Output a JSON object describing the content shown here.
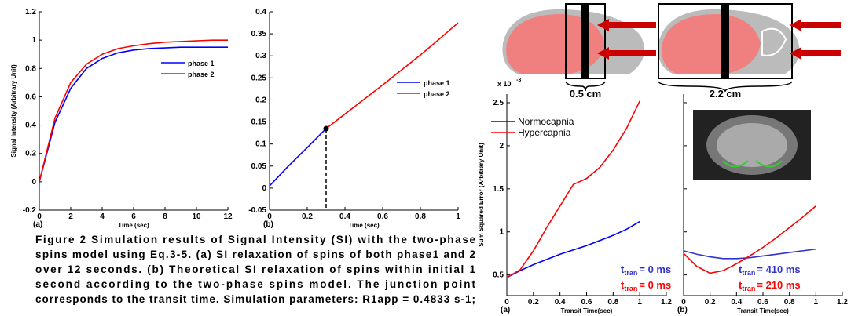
{
  "chart_data": [
    {
      "type": "line",
      "panel": "(a)",
      "x_label": "Time (sec)",
      "y_label": "Signal Intensity (Arbitrary Unit)",
      "x": [
        0,
        1,
        2,
        3,
        4,
        5,
        6,
        7,
        8,
        9,
        10,
        11,
        12
      ],
      "series": [
        {
          "name": "phase 1",
          "color": "#0000ff",
          "values": [
            0,
            0.42,
            0.66,
            0.8,
            0.87,
            0.91,
            0.93,
            0.94,
            0.945,
            0.95,
            0.95,
            0.95,
            0.95
          ]
        },
        {
          "name": "phase 2",
          "color": "#ff0000",
          "values": [
            0,
            0.45,
            0.7,
            0.83,
            0.9,
            0.94,
            0.96,
            0.975,
            0.985,
            0.99,
            0.995,
            1.0,
            1.0
          ]
        }
      ],
      "xlim": [
        0,
        12
      ],
      "xticks": [
        0,
        2,
        4,
        6,
        8,
        10,
        12
      ],
      "ylim": [
        -0.2,
        1.2
      ],
      "yticks": [
        -0.2,
        0,
        0.2,
        0.4,
        0.6,
        0.8,
        1,
        1.2
      ],
      "legend": "center right"
    },
    {
      "type": "line",
      "panel": "(b)",
      "x_label": "Time (sec)",
      "x": [
        0,
        0.1,
        0.2,
        0.3,
        0.4,
        0.5,
        0.6,
        0.7,
        0.8,
        0.9,
        1.0
      ],
      "series": [
        {
          "name": "phase 1",
          "color": "#0000ff",
          "values": [
            0.005,
            0.05,
            0.092,
            0.135,
            null,
            null,
            null,
            null,
            null,
            null,
            null
          ]
        },
        {
          "name": "phase 2",
          "color": "#ff0000",
          "values": [
            null,
            null,
            null,
            0.135,
            0.168,
            0.201,
            0.234,
            0.268,
            0.302,
            0.338,
            0.375
          ]
        }
      ],
      "junction": {
        "x": 0.3,
        "y": 0.135
      },
      "xlim": [
        0,
        1
      ],
      "xticks": [
        0,
        0.2,
        0.4,
        0.6,
        0.8,
        1
      ],
      "ylim": [
        -0.05,
        0.4
      ],
      "yticks": [
        -0.05,
        0,
        0.05,
        0.1,
        0.15,
        0.2,
        0.25,
        0.3,
        0.35,
        0.4
      ],
      "legend": "center right"
    },
    {
      "type": "line",
      "panel": "(a)",
      "x_label": "Transit Time(sec)",
      "y_label": "Sum Squared Error (Arbitrary Unit)",
      "y_multiplier": "x 10",
      "y_multiplier_exp": "-3",
      "x": [
        0,
        0.1,
        0.2,
        0.3,
        0.4,
        0.5,
        0.6,
        0.7,
        0.8,
        0.9,
        1.0
      ],
      "series": [
        {
          "name": "Normocapnia",
          "color": "#0000ff",
          "values": [
            0.47,
            0.55,
            0.62,
            0.68,
            0.74,
            0.79,
            0.84,
            0.9,
            0.96,
            1.03,
            1.12
          ]
        },
        {
          "name": "Hypercapnia",
          "color": "#ff0000",
          "values": [
            0.47,
            0.56,
            0.78,
            1.05,
            1.3,
            1.55,
            1.62,
            1.75,
            1.95,
            2.2,
            2.52
          ]
        }
      ],
      "xlim": [
        0,
        1.2
      ],
      "xticks": [
        0,
        0.2,
        0.4,
        0.6,
        0.8,
        1,
        1.2
      ],
      "ylim": [
        0.26,
        2.6
      ],
      "yticks": [
        0.5,
        1,
        1.5,
        2,
        2.5
      ],
      "legend": "upper left",
      "annotations": [
        {
          "main": "t",
          "sub": "tran",
          "rest": "= 0 ms",
          "color": "#3333cc"
        },
        {
          "main": "t",
          "sub": "tran",
          "rest": "= 0 ms",
          "color": "#ff0000"
        }
      ]
    },
    {
      "type": "line",
      "panel": "(b)",
      "x_label": "Transit Time(sec)",
      "x": [
        0,
        0.1,
        0.2,
        0.3,
        0.4,
        0.5,
        0.6,
        0.7,
        0.8,
        0.9,
        1.0
      ],
      "series": [
        {
          "color": "#3333cc",
          "values": [
            0.78,
            0.74,
            0.71,
            0.69,
            0.69,
            0.7,
            0.72,
            0.74,
            0.76,
            0.78,
            0.8
          ]
        },
        {
          "color": "#ff0000",
          "values": [
            0.75,
            0.6,
            0.52,
            0.55,
            0.63,
            0.72,
            0.82,
            0.93,
            1.05,
            1.17,
            1.3
          ]
        }
      ],
      "xlim": [
        0,
        1.2
      ],
      "xticks": [
        0,
        0.2,
        0.4,
        0.6,
        0.8,
        1,
        1.2
      ],
      "ylim": [
        0.26,
        2.6
      ],
      "yticks": [
        0.5,
        1,
        1.5,
        2,
        2.5
      ],
      "show_ytick_labels": false,
      "annotations": [
        {
          "main": "t",
          "sub": "tran",
          "rest": "= 410 ms",
          "color": "#3333cc"
        },
        {
          "main": "t",
          "sub": "tran",
          "rest": "= 210 ms",
          "color": "#ff0000"
        }
      ]
    }
  ],
  "caption": [
    "Figure 2 Simulation results of Signal Intensity (SI) with the two-phase",
    "spins model using Eq.3-5. (a) SI relaxation of spins of both phase1 and 2",
    "over 12 seconds. (b) Theoretical SI relaxation of spins within initial 1",
    "second according to the two-phase spins model. The junction point",
    "corresponds to the transit time. Simulation parameters: R1app = 0.4833 s-1;"
  ],
  "diagram_labels": [
    "0.5 cm",
    "2.2 cm"
  ]
}
